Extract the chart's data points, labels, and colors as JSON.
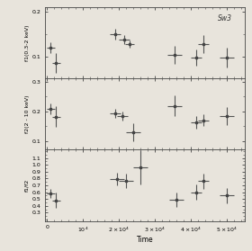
{
  "panel1": {
    "ylabel": "f1(0.3-2 keV)",
    "ylim": [
      0.05,
      0.21
    ],
    "yticks": [
      0.1,
      0.2
    ],
    "x": [
      1000,
      2500,
      19000,
      21500,
      23000,
      35500,
      41500,
      43500,
      50000
    ],
    "y": [
      0.12,
      0.085,
      0.15,
      0.138,
      0.128,
      0.103,
      0.097,
      0.127,
      0.097
    ],
    "xerr": [
      1200,
      1200,
      1500,
      1500,
      1200,
      2000,
      1500,
      1500,
      2000
    ],
    "yerr": [
      0.012,
      0.022,
      0.013,
      0.01,
      0.008,
      0.02,
      0.018,
      0.02,
      0.022
    ]
  },
  "panel2": {
    "ylabel": "f2(2 - 10 keV)",
    "ylim": [
      0.07,
      0.31
    ],
    "yticks": [
      0.1,
      0.2,
      0.3
    ],
    "x": [
      1000,
      2500,
      19000,
      21000,
      24000,
      35500,
      41500,
      43500,
      50000
    ],
    "y": [
      0.208,
      0.182,
      0.192,
      0.183,
      0.128,
      0.218,
      0.162,
      0.17,
      0.183
    ],
    "xerr": [
      1200,
      1200,
      1500,
      1500,
      2000,
      2000,
      1500,
      1500,
      2000
    ],
    "yerr": [
      0.018,
      0.035,
      0.015,
      0.015,
      0.03,
      0.035,
      0.022,
      0.02,
      0.03
    ]
  },
  "panel3": {
    "ylabel": "f1/f2",
    "ylim": [
      0.18,
      1.22
    ],
    "yticks": [
      0.3,
      0.4,
      0.5,
      0.6,
      0.7,
      0.8,
      0.9,
      1.0,
      1.1
    ],
    "x": [
      1000,
      2500,
      19500,
      22000,
      26000,
      36000,
      41500,
      43500,
      50000
    ],
    "y": [
      0.58,
      0.48,
      0.79,
      0.77,
      0.96,
      0.49,
      0.6,
      0.76,
      0.55
    ],
    "xerr": [
      1200,
      1200,
      2000,
      2000,
      2000,
      2000,
      1500,
      1500,
      2000
    ],
    "yerr": [
      0.07,
      0.115,
      0.09,
      0.105,
      0.25,
      0.11,
      0.11,
      0.11,
      0.11
    ]
  },
  "xlabel": "Time",
  "xlim": [
    -500,
    55000
  ],
  "xticks": [
    0,
    10000,
    20000,
    30000,
    40000,
    50000
  ],
  "annotation": "Sw3",
  "bg_color": "#e8e4dc",
  "line_color": "#555555"
}
